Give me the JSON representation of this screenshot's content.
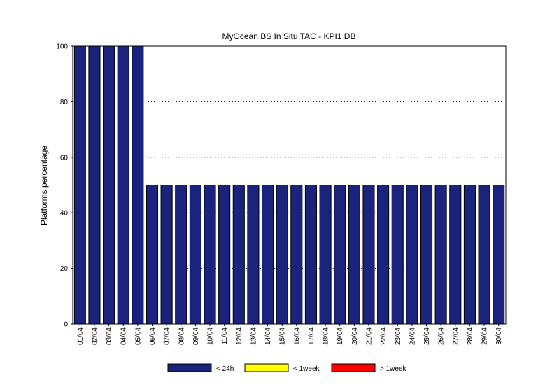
{
  "chart_data": {
    "type": "bar",
    "title": "MyOcean  BS In Situ TAC - KPI1  DB",
    "xlabel": "",
    "ylabel": "Platforms percentage",
    "ylim": [
      0,
      100
    ],
    "yticks": [
      0,
      20,
      40,
      60,
      80,
      100
    ],
    "grid": "horizontal-dotted",
    "categories": [
      "01/04",
      "02/04",
      "03/04",
      "04/04",
      "05/04",
      "06/04",
      "07/04",
      "08/04",
      "09/04",
      "10/04",
      "11/04",
      "12/04",
      "13/04",
      "14/04",
      "15/04",
      "16/04",
      "17/04",
      "18/04",
      "19/04",
      "20/04",
      "21/04",
      "22/04",
      "23/04",
      "24/04",
      "25/04",
      "26/04",
      "27/04",
      "28/04",
      "29/04",
      "30/04"
    ],
    "series": [
      {
        "name": "< 24h",
        "color": "#1a237e",
        "values": [
          100,
          100,
          100,
          100,
          100,
          50,
          50,
          50,
          50,
          50,
          50,
          50,
          50,
          50,
          50,
          50,
          50,
          50,
          50,
          50,
          50,
          50,
          50,
          50,
          50,
          50,
          50,
          50,
          50,
          50
        ]
      },
      {
        "name": "< 1week",
        "color": "#ffff00",
        "values": [
          0,
          0,
          0,
          0,
          0,
          0,
          0,
          0,
          0,
          0,
          0,
          0,
          0,
          0,
          0,
          0,
          0,
          0,
          0,
          0,
          0,
          0,
          0,
          0,
          0,
          0,
          0,
          0,
          0,
          0
        ]
      },
      {
        "name": "> 1week",
        "color": "#ff0000",
        "values": [
          0,
          0,
          0,
          0,
          0,
          0,
          0,
          0,
          0,
          0,
          0,
          0,
          0,
          0,
          0,
          0,
          0,
          0,
          0,
          0,
          0,
          0,
          0,
          0,
          0,
          0,
          0,
          0,
          0,
          0
        ]
      }
    ],
    "legend": "bottom"
  }
}
